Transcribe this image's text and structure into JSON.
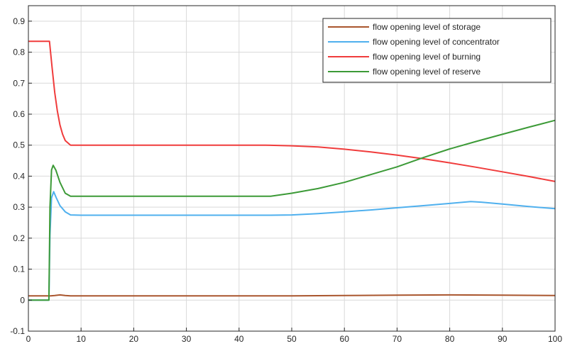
{
  "chart_data": {
    "type": "line",
    "title": "",
    "xlabel": "",
    "ylabel": "",
    "xlim": [
      0,
      100
    ],
    "ylim": [
      -0.1,
      0.95
    ],
    "xticks": [
      0,
      10,
      20,
      30,
      40,
      50,
      60,
      70,
      80,
      90,
      100
    ],
    "yticks": [
      -0.1,
      0,
      0.1,
      0.2,
      0.3,
      0.4,
      0.5,
      0.6,
      0.7,
      0.8,
      0.9
    ],
    "grid": true,
    "legend_position": "top-right",
    "series": [
      {
        "name": "flow opening level of storage",
        "color": "#a9552d",
        "x": [
          0,
          4,
          4.2,
          5,
          6,
          7,
          8,
          10,
          20,
          30,
          40,
          50,
          60,
          70,
          80,
          90,
          100
        ],
        "y": [
          0.014,
          0.014,
          0.014,
          0.015,
          0.017,
          0.015,
          0.014,
          0.014,
          0.014,
          0.014,
          0.014,
          0.014,
          0.015,
          0.016,
          0.017,
          0.016,
          0.015
        ]
      },
      {
        "name": "flow opening level of concentrator",
        "color": "#4fb0ee",
        "x": [
          0,
          3.9,
          4.1,
          4.4,
          4.8,
          5.3,
          6,
          7,
          8,
          10,
          20,
          30,
          40,
          46,
          50,
          55,
          60,
          65,
          70,
          75,
          80,
          84,
          86,
          90,
          95,
          100
        ],
        "y": [
          0,
          0,
          0.21,
          0.33,
          0.35,
          0.33,
          0.305,
          0.285,
          0.275,
          0.274,
          0.274,
          0.274,
          0.274,
          0.274,
          0.275,
          0.279,
          0.285,
          0.291,
          0.298,
          0.305,
          0.312,
          0.318,
          0.316,
          0.31,
          0.302,
          0.295
        ]
      },
      {
        "name": "flow opening level of burning",
        "color": "#f03c3c",
        "x": [
          0,
          4,
          4.5,
          5,
          5.5,
          6,
          6.5,
          7,
          8,
          10,
          20,
          30,
          40,
          45,
          50,
          55,
          60,
          65,
          70,
          75,
          80,
          85,
          90,
          95,
          100
        ],
        "y": [
          0.835,
          0.835,
          0.75,
          0.67,
          0.61,
          0.565,
          0.535,
          0.515,
          0.5,
          0.5,
          0.5,
          0.5,
          0.5,
          0.5,
          0.498,
          0.494,
          0.487,
          0.478,
          0.468,
          0.456,
          0.443,
          0.429,
          0.414,
          0.399,
          0.383
        ]
      },
      {
        "name": "flow opening level of reserve",
        "color": "#3c9a37",
        "x": [
          0,
          3.9,
          4.1,
          4.4,
          4.7,
          5.2,
          6,
          7,
          8,
          10,
          20,
          30,
          40,
          46,
          50,
          55,
          60,
          65,
          70,
          75,
          80,
          85,
          90,
          95,
          100
        ],
        "y": [
          0,
          0,
          0.3,
          0.42,
          0.435,
          0.42,
          0.38,
          0.345,
          0.335,
          0.335,
          0.335,
          0.335,
          0.335,
          0.335,
          0.345,
          0.36,
          0.38,
          0.405,
          0.43,
          0.46,
          0.488,
          0.512,
          0.535,
          0.558,
          0.58
        ]
      }
    ]
  }
}
